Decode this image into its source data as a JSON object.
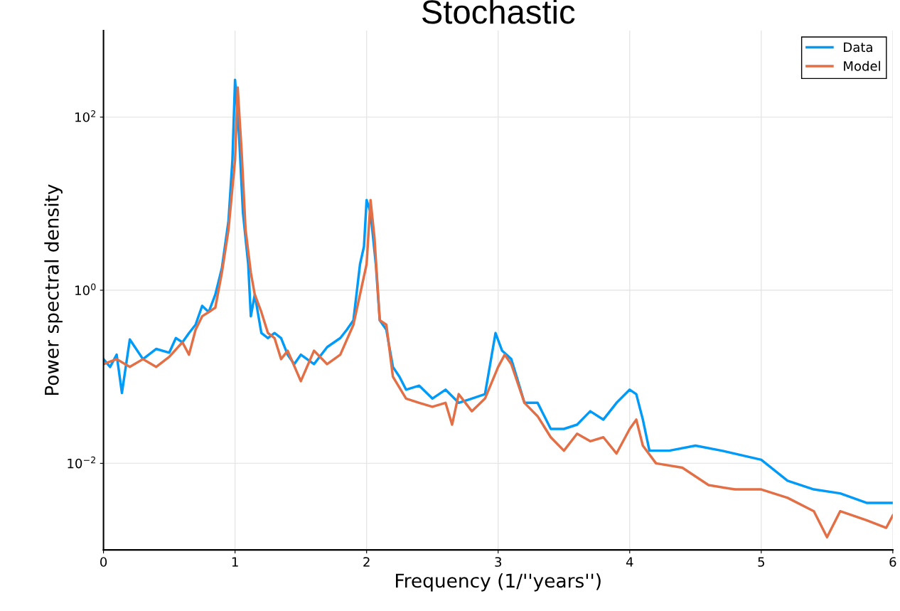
{
  "chart_data": {
    "type": "line",
    "title": "Stochastic",
    "xlabel": "Frequency (1/''years'')",
    "ylabel": "Power spectral density",
    "log": "y",
    "grid": true,
    "legend": "top right",
    "line_style": "solid",
    "marker": "none",
    "xlim": [
      0,
      6
    ],
    "xticks": [
      0,
      1,
      2,
      3,
      4,
      5,
      6
    ],
    "ylim": [
      0.001,
      1000
    ],
    "yticks": [
      {
        "value": 0.01,
        "label": "10$^{−2}$"
      },
      {
        "value": 1,
        "label": "10$^{0}$"
      },
      {
        "value": 100,
        "label": "10$^{2}$"
      }
    ],
    "series": [
      {
        "name": "Data",
        "color": "#009af9",
        "x": [
          0.0,
          0.05,
          0.1,
          0.14,
          0.2,
          0.3,
          0.4,
          0.5,
          0.55,
          0.6,
          0.65,
          0.7,
          0.75,
          0.8,
          0.85,
          0.9,
          0.95,
          0.98,
          1.0,
          1.03,
          1.06,
          1.1,
          1.12,
          1.15,
          1.2,
          1.25,
          1.3,
          1.35,
          1.4,
          1.45,
          1.5,
          1.6,
          1.7,
          1.8,
          1.85,
          1.9,
          1.95,
          1.98,
          2.0,
          2.03,
          2.07,
          2.1,
          2.15,
          2.2,
          2.25,
          2.3,
          2.4,
          2.5,
          2.6,
          2.7,
          2.8,
          2.9,
          2.98,
          3.03,
          3.1,
          3.2,
          3.3,
          3.4,
          3.5,
          3.6,
          3.7,
          3.8,
          3.9,
          4.0,
          4.05,
          4.1,
          4.15,
          4.3,
          4.5,
          4.7,
          5.0,
          5.2,
          5.4,
          5.6,
          5.8,
          6.0
        ],
        "values": [
          0.16,
          0.13,
          0.18,
          0.065,
          0.27,
          0.16,
          0.21,
          0.19,
          0.28,
          0.25,
          0.32,
          0.4,
          0.66,
          0.56,
          0.89,
          1.8,
          6.3,
          32,
          270,
          63,
          7.9,
          2,
          0.5,
          0.89,
          0.32,
          0.28,
          0.32,
          0.28,
          0.18,
          0.14,
          0.18,
          0.14,
          0.22,
          0.28,
          0.35,
          0.45,
          2,
          3.2,
          11,
          7.9,
          2,
          0.45,
          0.35,
          0.13,
          0.1,
          0.071,
          0.079,
          0.056,
          0.071,
          0.05,
          0.056,
          0.063,
          0.32,
          0.2,
          0.16,
          0.05,
          0.05,
          0.025,
          0.025,
          0.028,
          0.04,
          0.032,
          0.05,
          0.071,
          0.063,
          0.032,
          0.014,
          0.014,
          0.016,
          0.014,
          0.011,
          0.0063,
          0.005,
          0.0045,
          0.0035,
          0.0035
        ]
      },
      {
        "name": "Model",
        "color": "#e26f46",
        "x": [
          0.0,
          0.1,
          0.2,
          0.3,
          0.4,
          0.5,
          0.6,
          0.65,
          0.7,
          0.75,
          0.8,
          0.85,
          0.9,
          0.95,
          1.0,
          1.02,
          1.05,
          1.08,
          1.12,
          1.15,
          1.2,
          1.25,
          1.3,
          1.35,
          1.4,
          1.5,
          1.6,
          1.7,
          1.8,
          1.9,
          2.0,
          2.03,
          2.06,
          2.1,
          2.15,
          2.2,
          2.3,
          2.4,
          2.5,
          2.6,
          2.65,
          2.7,
          2.8,
          2.9,
          3.0,
          3.05,
          3.1,
          3.2,
          3.3,
          3.4,
          3.5,
          3.6,
          3.7,
          3.8,
          3.9,
          4.0,
          4.05,
          4.1,
          4.2,
          4.4,
          4.6,
          4.8,
          5.0,
          5.2,
          5.4,
          5.5,
          5.6,
          5.8,
          5.95,
          6.0
        ],
        "values": [
          0.14,
          0.16,
          0.13,
          0.16,
          0.13,
          0.17,
          0.25,
          0.18,
          0.35,
          0.5,
          0.56,
          0.63,
          1.6,
          5,
          32,
          220,
          40,
          5,
          1.6,
          0.89,
          0.56,
          0.32,
          0.28,
          0.16,
          0.2,
          0.089,
          0.2,
          0.14,
          0.18,
          0.4,
          2,
          11,
          4,
          0.45,
          0.4,
          0.1,
          0.056,
          0.05,
          0.045,
          0.05,
          0.028,
          0.063,
          0.04,
          0.056,
          0.13,
          0.18,
          0.14,
          0.05,
          0.035,
          0.02,
          0.014,
          0.022,
          0.018,
          0.02,
          0.013,
          0.025,
          0.032,
          0.016,
          0.01,
          0.0089,
          0.0056,
          0.005,
          0.005,
          0.004,
          0.0028,
          0.0014,
          0.0028,
          0.0022,
          0.0018,
          0.0025
        ]
      }
    ]
  }
}
